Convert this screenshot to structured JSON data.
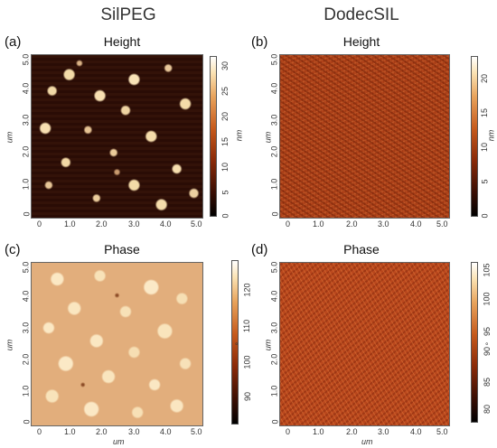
{
  "columns": {
    "left": "SilPEG",
    "right": "DodecSIL"
  },
  "panels": {
    "a": {
      "letter": "(a)",
      "title": "Height",
      "unit": "nm",
      "cbar_ticks": [
        "30",
        "25",
        "20",
        "15",
        "10",
        "5",
        "0"
      ]
    },
    "b": {
      "letter": "(b)",
      "title": "Height",
      "unit": "nm",
      "cbar_ticks": [
        "20",
        "15",
        "10",
        "5",
        "0"
      ]
    },
    "c": {
      "letter": "(c)",
      "title": "Phase",
      "unit": "°",
      "cbar_ticks": [
        "120",
        "110",
        "100",
        "90"
      ]
    },
    "d": {
      "letter": "(d)",
      "title": "Phase",
      "unit": "°",
      "cbar_ticks": [
        "105",
        "100",
        "95",
        "90",
        "85",
        "80"
      ]
    }
  },
  "axis": {
    "label": "um",
    "ticks": [
      "0",
      "1.0",
      "2.0",
      "3.0",
      "4.0",
      "5.0"
    ],
    "yticks": [
      "0",
      "1.0",
      "2.0",
      "3.0",
      "4.0",
      "5.0"
    ]
  },
  "colors": {
    "dark": "#2b0d06",
    "mid": "#b0431a",
    "light": "#e2ae7c"
  }
}
